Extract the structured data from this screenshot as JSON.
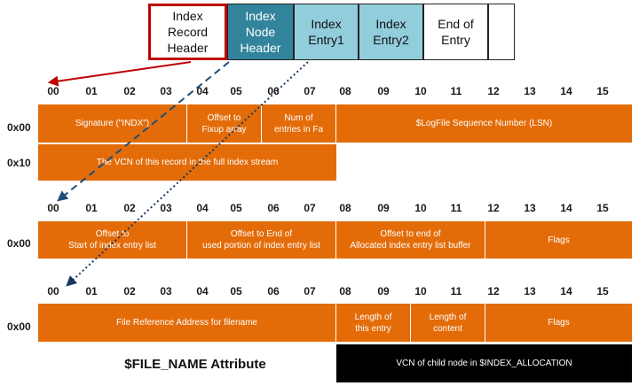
{
  "record_strip": {
    "cells": [
      {
        "label": "Index\nRecord\nHeader",
        "style": "hdr"
      },
      {
        "label": "Index\nNode\nHeader",
        "style": "node"
      },
      {
        "label": "Index\nEntry1",
        "style": "entry"
      },
      {
        "label": "Index\nEntry2",
        "style": "entry"
      },
      {
        "label": "End of\nEntry",
        "style": "plain"
      },
      {
        "label": "",
        "style": "plain"
      }
    ]
  },
  "byte_offsets": [
    "00",
    "01",
    "02",
    "03",
    "04",
    "05",
    "06",
    "07",
    "08",
    "09",
    "10",
    "11",
    "12",
    "13",
    "14",
    "15"
  ],
  "section_index_record_header": {
    "row_labels": [
      "0x00",
      "0x10"
    ],
    "fields": {
      "signature": "Signature (\"INDX\")",
      "fixup_offset": "Offset to\nFixup array",
      "num_entries": "Num of\nentries in Fa",
      "lsn": "$LogFile Sequence Number (LSN)",
      "vcn": "The VCN of this record in the full index stream"
    }
  },
  "section_index_node_header": {
    "row_labels": [
      "0x00"
    ],
    "fields": {
      "start_offset": "Offset to\nStart of index entry list",
      "used_end_offset": "Offset to End of\nused portion of index entry list",
      "alloc_end_offset": "Offset to end of\nAllocated index entry list buffer",
      "flags": "Flags"
    }
  },
  "section_index_entry": {
    "row_labels": [
      "0x00"
    ],
    "fields": {
      "file_reference": "File Reference Address for filename",
      "entry_length": "Length of\nthis entry",
      "content_length": "Length of\ncontent",
      "flags": "Flags",
      "child_vcn": "VCN of child node in $INDEX_ALLOCATION"
    },
    "caption": "$FILE_NAME Attribute"
  },
  "colors": {
    "field_orange": "#e36c09",
    "record_header_border": "#c00000",
    "node_header_fill": "#31849b",
    "entry_fill": "#92cddc",
    "arrow_red": "#c00000",
    "arrow_dashed": "#1f4e79",
    "arrow_dotted": "#17375e"
  }
}
